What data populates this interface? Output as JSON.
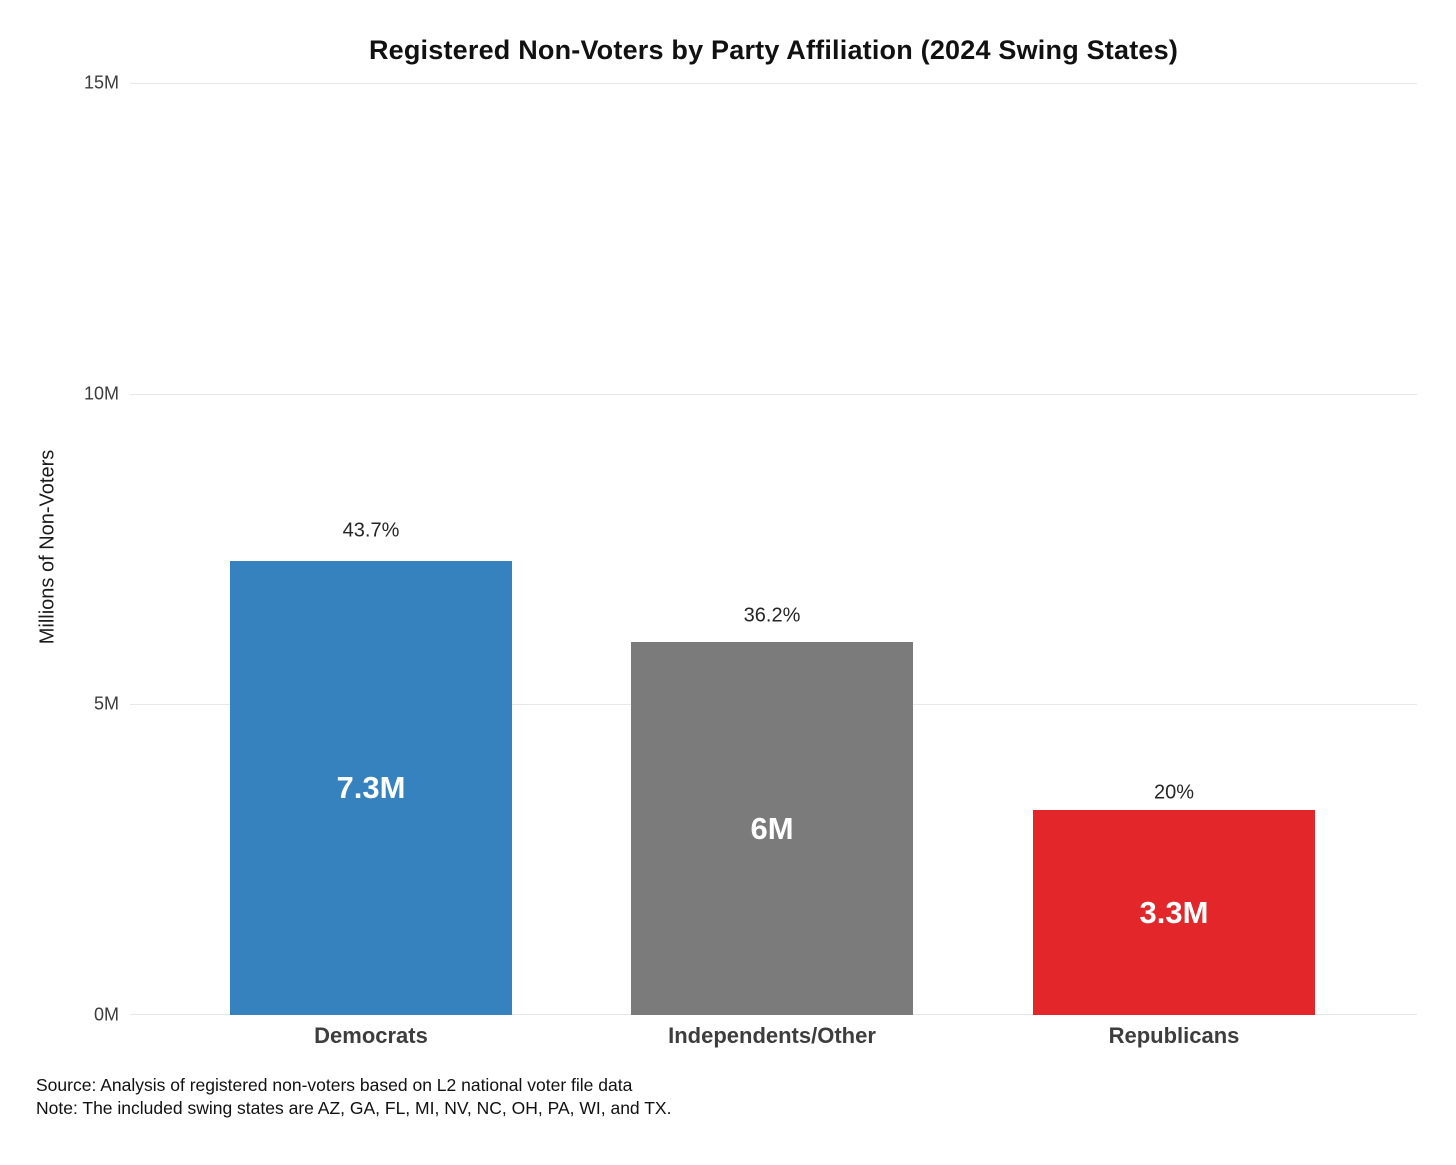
{
  "chart_data": {
    "type": "bar",
    "title": "Registered Non-Voters by Party Affiliation (2024 Swing States)",
    "ylabel": "Millions of Non-Voters",
    "categories": [
      "Democrats",
      "Independents/Other",
      "Republicans"
    ],
    "values": [
      7.3,
      6.0,
      3.3
    ],
    "value_labels": [
      "7.3M",
      "6M",
      "3.3M"
    ],
    "percent_labels": [
      "43.7%",
      "36.2%",
      "20%"
    ],
    "bar_colors": [
      "#3582be",
      "#7b7b7b",
      "#e32629"
    ],
    "ylim": [
      0,
      15
    ],
    "yticks": [
      "0M",
      "5M",
      "10M",
      "15M"
    ],
    "ytick_values": [
      0,
      5,
      10,
      15
    ],
    "grid": true,
    "legend": "none"
  },
  "footer": {
    "source": "Source: Analysis of registered non-voters based on L2 national voter file data",
    "note": "Note: The included swing states are AZ, GA, FL, MI, NV, NC, OH, PA, WI, and TX."
  }
}
